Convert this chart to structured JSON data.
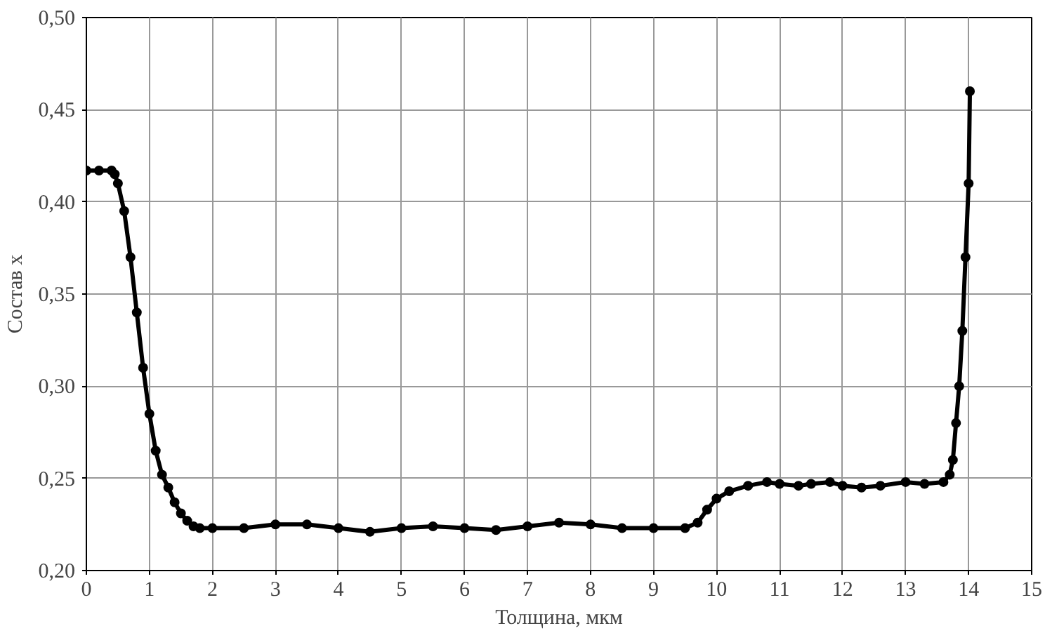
{
  "chart_data": {
    "type": "line",
    "xlabel": "Толщина, мкм",
    "ylabel": "Состав x",
    "x": [
      0,
      0.2,
      0.4,
      0.45,
      0.5,
      0.6,
      0.7,
      0.8,
      0.9,
      1.0,
      1.1,
      1.2,
      1.3,
      1.4,
      1.5,
      1.6,
      1.7,
      1.8,
      2.0,
      2.5,
      3.0,
      3.5,
      4.0,
      4.5,
      5.0,
      5.5,
      6.0,
      6.5,
      7.0,
      7.5,
      8.0,
      8.5,
      9.0,
      9.5,
      9.7,
      9.85,
      10.0,
      10.2,
      10.5,
      10.8,
      11.0,
      11.3,
      11.5,
      11.8,
      12.0,
      12.3,
      12.6,
      13.0,
      13.3,
      13.6,
      13.7,
      13.75,
      13.8,
      13.85,
      13.9,
      13.95,
      14.0,
      14.02
    ],
    "values": [
      0.417,
      0.417,
      0.417,
      0.415,
      0.41,
      0.395,
      0.37,
      0.34,
      0.31,
      0.285,
      0.265,
      0.252,
      0.245,
      0.237,
      0.231,
      0.227,
      0.224,
      0.223,
      0.223,
      0.223,
      0.225,
      0.225,
      0.223,
      0.221,
      0.223,
      0.224,
      0.223,
      0.222,
      0.224,
      0.226,
      0.225,
      0.223,
      0.223,
      0.223,
      0.226,
      0.233,
      0.239,
      0.243,
      0.246,
      0.248,
      0.247,
      0.246,
      0.247,
      0.248,
      0.246,
      0.245,
      0.246,
      0.248,
      0.247,
      0.248,
      0.252,
      0.26,
      0.28,
      0.3,
      0.33,
      0.37,
      0.41,
      0.46
    ],
    "color": "#000000",
    "marker": "circle",
    "line_style": "solid",
    "grid": true,
    "xlim": [
      0,
      15
    ],
    "xticks": [
      0,
      1,
      2,
      3,
      4,
      5,
      6,
      7,
      8,
      9,
      10,
      11,
      12,
      13,
      14,
      15
    ],
    "ylim": [
      0.2,
      0.5
    ],
    "yticks": [
      {
        "value": 0.2,
        "label": "0,20"
      },
      {
        "value": 0.25,
        "label": "0,25"
      },
      {
        "value": 0.3,
        "label": "0,30"
      },
      {
        "value": 0.35,
        "label": "0,35"
      },
      {
        "value": 0.4,
        "label": "0,40"
      },
      {
        "value": 0.45,
        "label": "0,45"
      },
      {
        "value": 0.5,
        "label": "0,50"
      }
    ]
  }
}
